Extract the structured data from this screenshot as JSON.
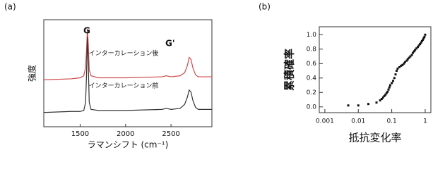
{
  "chart_data": [
    {
      "type": "line",
      "panel_label": "(a)",
      "x_label": "ラマンシフト (cm⁻¹)",
      "y_label": "強度",
      "x": [
        1100,
        1400,
        1500,
        1540,
        1560,
        1570,
        1580,
        1590,
        1600,
        1620,
        1700,
        2000,
        2400,
        2450,
        2500,
        2600,
        2650,
        2680,
        2700,
        2720,
        2740,
        2770,
        2800,
        2950
      ],
      "series": [
        {
          "name": "インターカレーション後",
          "color": "#d04848",
          "values": [
            4.6,
            4.7,
            4.8,
            5.0,
            5.8,
            7.5,
            9.6,
            8.0,
            5.6,
            5.0,
            4.8,
            4.8,
            4.9,
            5.0,
            4.9,
            5.0,
            5.3,
            6.0,
            6.8,
            6.6,
            5.8,
            5.1,
            4.9,
            4.9
          ]
        },
        {
          "name": "インターカレーション前",
          "color": "#333333",
          "values": [
            1.4,
            1.5,
            1.5,
            1.6,
            2.4,
            5.0,
            8.8,
            6.0,
            2.4,
            1.7,
            1.6,
            1.6,
            1.7,
            1.8,
            1.7,
            1.8,
            2.2,
            2.9,
            3.6,
            3.4,
            2.6,
            1.9,
            1.7,
            1.7
          ]
        }
      ],
      "annotations": [
        "G",
        "G'"
      ],
      "xlim": [
        1100,
        2950
      ],
      "xticks": [
        1500,
        2000,
        2500
      ],
      "ylim": [
        0,
        10.5
      ]
    },
    {
      "type": "scatter",
      "panel_label": "(b)",
      "x_label": "抵抗変化率",
      "y_label": "累積確率",
      "log_x": true,
      "color": "#111111",
      "x": [
        0.005,
        0.01,
        0.02,
        0.035,
        0.045,
        0.05,
        0.055,
        0.06,
        0.065,
        0.07,
        0.075,
        0.08,
        0.085,
        0.09,
        0.1,
        0.11,
        0.12,
        0.13,
        0.14,
        0.15,
        0.17,
        0.19,
        0.21,
        0.23,
        0.25,
        0.28,
        0.3,
        0.33,
        0.36,
        0.4,
        0.43,
        0.47,
        0.5,
        0.55,
        0.6,
        0.65,
        0.7,
        0.75,
        0.8,
        0.85,
        0.9,
        0.95,
        1.0
      ],
      "y": [
        0.02,
        0.02,
        0.04,
        0.06,
        0.09,
        0.11,
        0.13,
        0.15,
        0.17,
        0.19,
        0.21,
        0.24,
        0.27,
        0.3,
        0.33,
        0.36,
        0.4,
        0.45,
        0.5,
        0.53,
        0.55,
        0.57,
        0.58,
        0.6,
        0.62,
        0.64,
        0.66,
        0.68,
        0.7,
        0.72,
        0.75,
        0.77,
        0.79,
        0.81,
        0.83,
        0.85,
        0.87,
        0.89,
        0.91,
        0.93,
        0.95,
        0.97,
        1.0
      ],
      "xlim": [
        0.00068,
        1.48
      ],
      "xticks": [
        0.001,
        0.01,
        0.1,
        1
      ],
      "ylim": [
        -0.08,
        1.11
      ],
      "yticks": [
        {
          "value": 0,
          "label": "0.0"
        },
        {
          "value": 0.2,
          "label": "0.2"
        },
        {
          "value": 0.4,
          "label": "0.4"
        },
        {
          "value": 0.6,
          "label": "0.6"
        },
        {
          "value": 0.8,
          "label": "0.8"
        },
        {
          "value": 1,
          "label": "1.0"
        }
      ]
    }
  ]
}
